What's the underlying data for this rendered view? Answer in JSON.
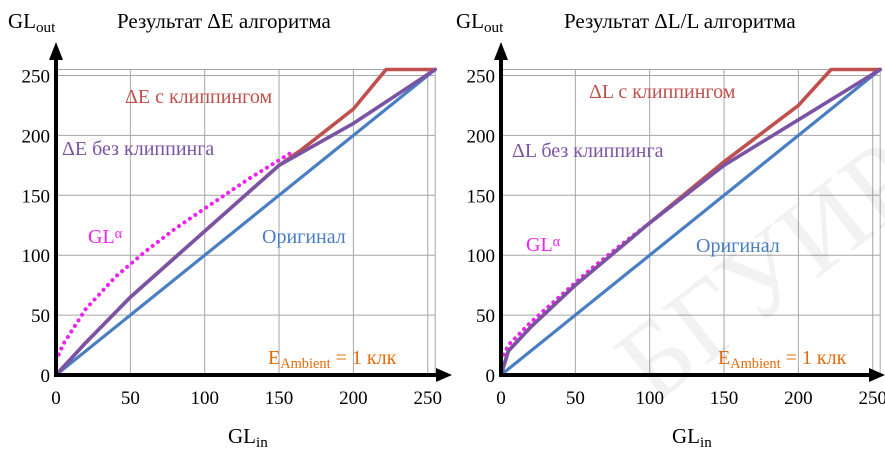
{
  "watermark": "БГУИР",
  "chart_data": [
    {
      "type": "line",
      "title": "Результат ΔE алгоритма",
      "ylabel_main": "GL",
      "ylabel_sub": "out",
      "xlabel_main": "GL",
      "xlabel_sub": "in",
      "xlim": [
        0,
        255
      ],
      "ylim": [
        0,
        255
      ],
      "xticks": [
        "0",
        "50",
        "100",
        "150",
        "200",
        "250"
      ],
      "yticks": [
        "0",
        "50",
        "100",
        "150",
        "200",
        "250"
      ],
      "grid": true,
      "series": [
        {
          "name": "Оригинал",
          "color": "#4a7ec2",
          "style": "solid",
          "x": [
            0,
            255
          ],
          "y": [
            0,
            255
          ]
        },
        {
          "name": "ΔE с клиппингом",
          "color": "#c0504d",
          "style": "solid",
          "x": [
            0,
            20,
            50,
            100,
            150,
            165,
            200,
            222,
            255
          ],
          "y": [
            0,
            27,
            65,
            120,
            175,
            188,
            222,
            255,
            255
          ]
        },
        {
          "name": "ΔE без клиппинга",
          "color": "#7b53a4",
          "style": "solid",
          "x": [
            0,
            20,
            50,
            100,
            150,
            200,
            255
          ],
          "y": [
            0,
            27,
            65,
            120,
            175,
            210,
            255
          ]
        },
        {
          "name": "GLα",
          "color": "#ee22ee",
          "style": "dotted",
          "x": [
            0,
            5,
            20,
            40,
            60,
            80,
            100,
            130,
            160
          ],
          "y": [
            12,
            26,
            55,
            82,
            103,
            122,
            139,
            164,
            187
          ]
        }
      ],
      "labels": {
        "clip_main": "ΔE с клиппингом",
        "noclip_main": "ΔE без клиппинга",
        "gl_main": "GL",
        "gl_sup": "α",
        "orig": "Оригинал",
        "amb_main": "E",
        "amb_sub": "Ambient",
        "amb_rest": " = 1 клк"
      },
      "colors": {
        "clip": "#c0504d",
        "noclip": "#7b53a4",
        "gl": "#ee22ee",
        "orig": "#4a7ec2",
        "ambient": "#e36c09"
      }
    },
    {
      "type": "line",
      "title": "Результат ΔL/L алгоритма",
      "ylabel_main": "GL",
      "ylabel_sub": "out",
      "xlabel_main": "GL",
      "xlabel_sub": "in",
      "xlim": [
        0,
        255
      ],
      "ylim": [
        0,
        255
      ],
      "xticks": [
        "0",
        "50",
        "100",
        "150",
        "200",
        "250"
      ],
      "yticks": [
        "0",
        "50",
        "100",
        "150",
        "200",
        "250"
      ],
      "grid": true,
      "series": [
        {
          "name": "Оригинал",
          "color": "#4a7ec2",
          "style": "solid",
          "x": [
            0,
            255
          ],
          "y": [
            0,
            255
          ]
        },
        {
          "name": "ΔL с клиппингом",
          "color": "#c0504d",
          "style": "solid",
          "x": [
            0,
            5,
            20,
            50,
            100,
            150,
            200,
            222,
            255
          ],
          "y": [
            0,
            20,
            40,
            75,
            127,
            178,
            225,
            255,
            255
          ]
        },
        {
          "name": "ΔL без клиппинга",
          "color": "#7b53a4",
          "style": "solid",
          "x": [
            0,
            5,
            20,
            50,
            100,
            150,
            200,
            255
          ],
          "y": [
            0,
            20,
            40,
            75,
            127,
            175,
            213,
            255
          ]
        },
        {
          "name": "GLα",
          "color": "#ee22ee",
          "style": "dotted",
          "x": [
            0,
            5,
            20,
            40,
            60,
            80,
            100,
            130
          ],
          "y": [
            12,
            25,
            44,
            66,
            88,
            108,
            127,
            156
          ]
        }
      ],
      "labels": {
        "clip_main": "ΔL с клиппингом",
        "noclip_main": "ΔL без клиппинга",
        "gl_main": "GL",
        "gl_sup": "α",
        "orig": "Оригинал",
        "amb_main": "E",
        "amb_sub": "Ambient",
        "amb_rest": " = 1 клк"
      },
      "colors": {
        "clip": "#c0504d",
        "noclip": "#7b53a4",
        "gl": "#ee22ee",
        "orig": "#4a7ec2",
        "ambient": "#e36c09"
      }
    }
  ]
}
